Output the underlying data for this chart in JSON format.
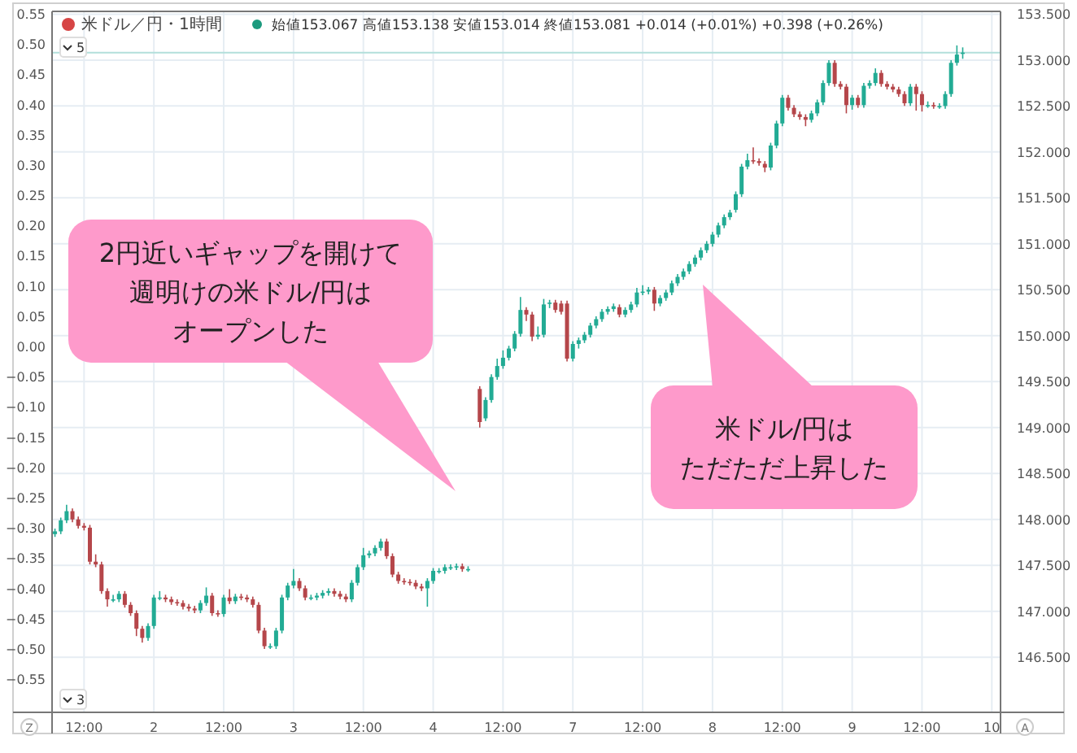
{
  "chart_data": {
    "type": "candlestick",
    "title": "米ドル／円・1時間",
    "subtitle": "始値153.067 高値153.138 安値153.014 終値153.081 +0.014 (+0.01%) +0.398 (+0.26%)",
    "annotations": [
      "2円近いギャップを開けて",
      "週明けの米ドル/円は",
      "オープンした",
      "米ドル/円は",
      "ただただ上昇した",
      "5",
      "3",
      "Z",
      "A"
    ],
    "categories": [
      null,
      null,
      null,
      null,
      null,
      "12:00",
      null,
      null,
      null,
      null,
      null,
      null,
      null,
      null,
      null,
      null,
      null,
      "2",
      null,
      null,
      null,
      null,
      null,
      null,
      null,
      null,
      null,
      null,
      null,
      "12:00",
      null,
      null,
      null,
      null,
      null,
      null,
      null,
      null,
      null,
      null,
      null,
      "3",
      null,
      null,
      null,
      null,
      null,
      null,
      null,
      null,
      null,
      null,
      null,
      "12:00",
      null,
      null,
      null,
      null,
      null,
      null,
      null,
      null,
      null,
      null,
      null,
      "4",
      null,
      null,
      null,
      null,
      null,
      null,
      null,
      null,
      null,
      null,
      null,
      "12:00",
      null,
      null,
      null,
      null,
      null,
      null,
      null,
      null,
      null,
      null,
      null,
      "7",
      null,
      null,
      null,
      null,
      null,
      null,
      null,
      null,
      null,
      null,
      null,
      "12:00",
      null,
      null,
      null,
      null,
      null,
      null,
      null,
      null,
      null,
      null,
      null,
      "8",
      null,
      null,
      null,
      null,
      null,
      null,
      null,
      null,
      null,
      null,
      null,
      "12:00",
      null,
      null,
      null,
      null,
      null,
      null,
      null,
      null,
      null,
      null,
      null,
      "9",
      null,
      null,
      null,
      null,
      null,
      null,
      null,
      null,
      null,
      null,
      null,
      "12:00",
      null,
      null,
      null,
      null,
      null,
      null,
      null,
      null,
      null,
      null,
      null,
      "10",
      null
    ],
    "ylim": [
      -0.605,
      0.554
    ],
    "yticks": [
      {
        "value": 0.55,
        "label": "0.55"
      },
      {
        "value": 0.5,
        "label": "0.50"
      },
      {
        "value": 0.45,
        "label": "0.45"
      },
      {
        "value": 0.4,
        "label": "0.40"
      },
      {
        "value": 0.35,
        "label": "0.35"
      },
      {
        "value": 0.3,
        "label": "0.30"
      },
      {
        "value": 0.25,
        "label": "0.25"
      },
      {
        "value": 0.2,
        "label": "0.20"
      },
      {
        "value": 0.15,
        "label": "0.15"
      },
      {
        "value": 0.1,
        "label": "0.10"
      },
      {
        "value": 0.05,
        "label": "0.05"
      },
      {
        "value": 0,
        "label": "0.00"
      },
      {
        "value": -0.05,
        "label": "−0.05"
      },
      {
        "value": -0.1,
        "label": "−0.10"
      },
      {
        "value": -0.15,
        "label": "−0.15"
      },
      {
        "value": -0.2,
        "label": "−0.20"
      },
      {
        "value": -0.25,
        "label": "−0.25"
      },
      {
        "value": -0.3,
        "label": "−0.30"
      },
      {
        "value": -0.35,
        "label": "−0.35"
      },
      {
        "value": -0.4,
        "label": "−0.40"
      },
      {
        "value": -0.45,
        "label": "−0.45"
      },
      {
        "value": -0.5,
        "label": "−0.50"
      },
      {
        "value": -0.55,
        "label": "−0.55"
      }
    ],
    "y2lim": [
      145.9,
      153.53
    ],
    "y2ticks": [
      {
        "value": 146.5,
        "label": "146.500"
      },
      {
        "value": 147,
        "label": "147.000"
      },
      {
        "value": 147.5,
        "label": "147.500"
      },
      {
        "value": 148,
        "label": "148.000"
      },
      {
        "value": 148.5,
        "label": "148.500"
      },
      {
        "value": 149,
        "label": "149.000"
      },
      {
        "value": 149.5,
        "label": "149.500"
      },
      {
        "value": 150,
        "label": "150.000"
      },
      {
        "value": 150.5,
        "label": "150.500"
      },
      {
        "value": 151,
        "label": "151.000"
      },
      {
        "value": 151.5,
        "label": "151.500"
      },
      {
        "value": 152,
        "label": "152.000"
      },
      {
        "value": 152.5,
        "label": "152.500"
      },
      {
        "value": 153,
        "label": "153.000"
      },
      {
        "value": 153.5,
        "label": "153.500"
      }
    ],
    "grid": true,
    "ref_lines": [
      {
        "axis": "y2",
        "value": 153.081,
        "color": "#b2dfdb"
      }
    ],
    "series": [
      {
        "axis": "y2",
        "ohlc": [
          [
            147.84,
            147.9,
            147.81,
            147.87
          ],
          [
            147.87,
            148.02,
            147.84,
            147.99
          ],
          [
            147.99,
            148.16,
            147.96,
            148.09
          ],
          [
            148.09,
            148.12,
            147.97,
            148.0
          ],
          [
            148.0,
            148.03,
            147.9,
            147.93
          ],
          [
            147.93,
            147.96,
            147.88,
            147.91
          ],
          [
            147.91,
            147.94,
            147.51,
            147.54
          ],
          [
            147.54,
            147.62,
            147.48,
            147.51
          ],
          [
            147.51,
            147.54,
            147.19,
            147.22
          ],
          [
            147.22,
            147.25,
            147.05,
            147.13
          ],
          [
            147.13,
            147.18,
            147.1,
            147.13
          ],
          [
            147.13,
            147.22,
            147.1,
            147.19
          ],
          [
            147.19,
            147.22,
            147.04,
            147.07
          ],
          [
            147.07,
            147.1,
            146.95,
            146.98
          ],
          [
            146.98,
            147.01,
            146.73,
            146.81
          ],
          [
            146.81,
            146.84,
            146.66,
            146.71
          ],
          [
            146.71,
            146.87,
            146.68,
            146.84
          ],
          [
            146.84,
            147.18,
            146.81,
            147.15
          ],
          [
            147.15,
            147.22,
            147.12,
            147.15
          ],
          [
            147.15,
            147.18,
            147.1,
            147.13
          ],
          [
            147.13,
            147.16,
            147.07,
            147.1
          ],
          [
            147.1,
            147.13,
            147.06,
            147.09
          ],
          [
            147.09,
            147.12,
            147.02,
            147.05
          ],
          [
            147.05,
            147.08,
            147.0,
            147.03
          ],
          [
            147.03,
            147.06,
            146.98,
            147.01
          ],
          [
            147.01,
            147.12,
            146.98,
            147.09
          ],
          [
            147.09,
            147.26,
            147.06,
            147.17
          ],
          [
            147.17,
            147.2,
            146.95,
            146.98
          ],
          [
            146.98,
            147.01,
            146.94,
            146.97
          ],
          [
            146.97,
            147.18,
            146.94,
            147.15
          ],
          [
            147.15,
            147.24,
            147.08,
            147.11
          ],
          [
            147.11,
            147.19,
            147.08,
            147.16
          ],
          [
            147.16,
            147.19,
            147.12,
            147.15
          ],
          [
            147.15,
            147.18,
            147.1,
            147.13
          ],
          [
            147.13,
            147.16,
            147.04,
            147.07
          ],
          [
            147.07,
            147.1,
            146.76,
            146.79
          ],
          [
            146.79,
            146.82,
            146.59,
            146.62
          ],
          [
            146.62,
            146.65,
            146.59,
            146.62
          ],
          [
            146.62,
            146.82,
            146.59,
            146.79
          ],
          [
            146.79,
            147.18,
            146.76,
            147.15
          ],
          [
            147.15,
            147.31,
            147.12,
            147.28
          ],
          [
            147.28,
            147.46,
            147.25,
            147.33
          ],
          [
            147.33,
            147.36,
            147.22,
            147.25
          ],
          [
            147.25,
            147.28,
            147.12,
            147.15
          ],
          [
            147.15,
            147.18,
            147.12,
            147.15
          ],
          [
            147.15,
            147.2,
            147.12,
            147.17
          ],
          [
            147.17,
            147.23,
            147.14,
            147.2
          ],
          [
            147.2,
            147.25,
            147.17,
            147.22
          ],
          [
            147.22,
            147.25,
            147.16,
            147.19
          ],
          [
            147.19,
            147.22,
            147.13,
            147.16
          ],
          [
            147.16,
            147.19,
            147.1,
            147.13
          ],
          [
            147.13,
            147.34,
            147.1,
            147.31
          ],
          [
            147.31,
            147.51,
            147.28,
            147.48
          ],
          [
            147.48,
            147.69,
            147.45,
            147.61
          ],
          [
            147.61,
            147.66,
            147.58,
            147.63
          ],
          [
            147.63,
            147.72,
            147.6,
            147.69
          ],
          [
            147.69,
            147.79,
            147.66,
            147.76
          ],
          [
            147.76,
            147.79,
            147.57,
            147.6
          ],
          [
            147.6,
            147.63,
            147.37,
            147.4
          ],
          [
            147.4,
            147.43,
            147.3,
            147.33
          ],
          [
            147.33,
            147.36,
            147.29,
            147.32
          ],
          [
            147.32,
            147.35,
            147.28,
            147.31
          ],
          [
            147.31,
            147.34,
            147.24,
            147.27
          ],
          [
            147.27,
            147.3,
            147.22,
            147.25
          ],
          [
            147.25,
            147.36,
            147.05,
            147.33
          ],
          [
            147.33,
            147.47,
            147.3,
            147.44
          ],
          [
            147.44,
            147.47,
            147.41,
            147.44
          ],
          [
            147.44,
            147.51,
            147.41,
            147.48
          ],
          [
            147.48,
            147.51,
            147.45,
            147.48
          ],
          [
            147.48,
            147.52,
            147.45,
            147.49
          ],
          [
            147.49,
            147.52,
            147.43,
            147.46
          ],
          [
            147.46,
            147.49,
            147.43,
            147.46
          ],
          null,
          [
            149.42,
            149.45,
            149.0,
            149.06
          ],
          [
            149.1,
            149.33,
            149.07,
            149.3
          ],
          [
            149.3,
            149.58,
            149.27,
            149.55
          ],
          [
            149.55,
            149.75,
            149.52,
            149.67
          ],
          [
            149.67,
            149.84,
            149.64,
            149.76
          ],
          [
            149.76,
            149.89,
            149.73,
            149.86
          ],
          [
            149.86,
            150.05,
            149.83,
            150.02
          ],
          [
            150.02,
            150.42,
            149.99,
            150.28
          ],
          [
            150.28,
            150.31,
            150.16,
            150.23
          ],
          [
            150.23,
            150.26,
            149.94,
            149.99
          ],
          [
            149.99,
            150.1,
            149.96,
            150.01
          ],
          [
            150.01,
            150.4,
            149.98,
            150.34
          ],
          [
            150.35,
            150.39,
            150.3,
            150.36
          ],
          [
            150.36,
            150.39,
            150.25,
            150.28
          ],
          [
            150.35,
            150.38,
            150.23,
            150.26
          ],
          [
            150.35,
            150.38,
            149.72,
            149.75
          ],
          [
            149.75,
            149.94,
            149.72,
            149.91
          ],
          [
            149.91,
            149.98,
            149.86,
            149.95
          ],
          [
            149.95,
            150.04,
            149.92,
            150.01
          ],
          [
            150.01,
            150.14,
            149.98,
            150.11
          ],
          [
            150.11,
            150.21,
            150.08,
            150.18
          ],
          [
            150.18,
            150.29,
            150.15,
            150.26
          ],
          [
            150.26,
            150.32,
            150.23,
            150.29
          ],
          [
            150.29,
            150.35,
            150.26,
            150.32
          ],
          [
            150.31,
            150.34,
            150.2,
            150.23
          ],
          [
            150.23,
            150.31,
            150.2,
            150.28
          ],
          [
            150.28,
            150.37,
            150.25,
            150.34
          ],
          [
            150.34,
            150.52,
            150.31,
            150.47
          ],
          [
            150.47,
            150.55,
            150.44,
            150.48
          ],
          [
            150.48,
            150.53,
            150.45,
            150.5
          ],
          [
            150.5,
            150.53,
            150.27,
            150.35
          ],
          [
            150.35,
            150.44,
            150.32,
            150.41
          ],
          [
            150.41,
            150.5,
            150.38,
            150.47
          ],
          [
            150.47,
            150.6,
            150.44,
            150.57
          ],
          [
            150.57,
            150.67,
            150.54,
            150.64
          ],
          [
            150.64,
            150.73,
            150.61,
            150.7
          ],
          [
            150.7,
            150.81,
            150.67,
            150.78
          ],
          [
            150.78,
            150.88,
            150.75,
            150.85
          ],
          [
            150.85,
            150.96,
            150.82,
            150.93
          ],
          [
            150.93,
            151.03,
            150.9,
            151.0
          ],
          [
            151.0,
            151.13,
            150.97,
            151.1
          ],
          [
            151.1,
            151.23,
            151.07,
            151.2
          ],
          [
            151.2,
            151.32,
            151.17,
            151.29
          ],
          [
            151.29,
            151.37,
            151.26,
            151.34
          ],
          [
            151.37,
            151.57,
            151.34,
            151.54
          ],
          [
            151.54,
            151.87,
            151.51,
            151.84
          ],
          [
            151.84,
            151.98,
            151.81,
            151.91
          ],
          [
            151.91,
            152.05,
            151.87,
            151.9
          ],
          [
            151.9,
            151.93,
            151.85,
            151.88
          ],
          [
            151.87,
            151.9,
            151.78,
            151.83
          ],
          [
            151.83,
            152.1,
            151.8,
            152.07
          ],
          [
            152.07,
            152.34,
            152.04,
            152.31
          ],
          [
            152.31,
            152.62,
            152.28,
            152.59
          ],
          [
            152.59,
            152.62,
            152.45,
            152.48
          ],
          [
            152.48,
            152.51,
            152.38,
            152.41
          ],
          [
            152.41,
            152.44,
            152.35,
            152.38
          ],
          [
            152.38,
            152.41,
            152.28,
            152.35
          ],
          [
            152.35,
            152.45,
            152.32,
            152.42
          ],
          [
            152.42,
            152.57,
            152.39,
            152.54
          ],
          [
            152.54,
            152.78,
            152.51,
            152.75
          ],
          [
            152.75,
            153.0,
            152.72,
            152.97
          ],
          [
            152.97,
            153.0,
            152.71,
            152.74
          ],
          [
            152.74,
            152.77,
            152.68,
            152.71
          ],
          [
            152.71,
            152.74,
            152.42,
            152.51
          ],
          [
            152.51,
            152.62,
            152.46,
            152.59
          ],
          [
            152.59,
            152.62,
            152.48,
            152.51
          ],
          [
            152.51,
            152.75,
            152.48,
            152.72
          ],
          [
            152.72,
            152.78,
            152.69,
            152.75
          ],
          [
            152.75,
            152.91,
            152.72,
            152.86
          ],
          [
            152.86,
            152.89,
            152.71,
            152.74
          ],
          [
            152.74,
            152.77,
            152.68,
            152.71
          ],
          [
            152.71,
            152.74,
            152.65,
            152.68
          ],
          [
            152.68,
            152.71,
            152.6,
            152.63
          ],
          [
            152.63,
            152.66,
            152.5,
            152.53
          ],
          [
            152.53,
            152.74,
            152.5,
            152.71
          ],
          [
            152.71,
            152.74,
            152.45,
            152.63
          ],
          [
            152.63,
            152.66,
            152.44,
            152.51
          ],
          [
            152.51,
            152.55,
            152.48,
            152.51
          ],
          [
            152.51,
            152.54,
            152.47,
            152.5
          ],
          [
            152.5,
            152.53,
            152.47,
            152.5
          ],
          [
            152.5,
            152.66,
            152.47,
            152.63
          ],
          [
            152.63,
            153.0,
            152.6,
            152.97
          ],
          [
            152.97,
            153.16,
            152.94,
            153.06
          ],
          [
            153.067,
            153.138,
            153.014,
            153.081
          ],
          null,
          null,
          null,
          null,
          null,
          null
        ]
      }
    ]
  }
}
